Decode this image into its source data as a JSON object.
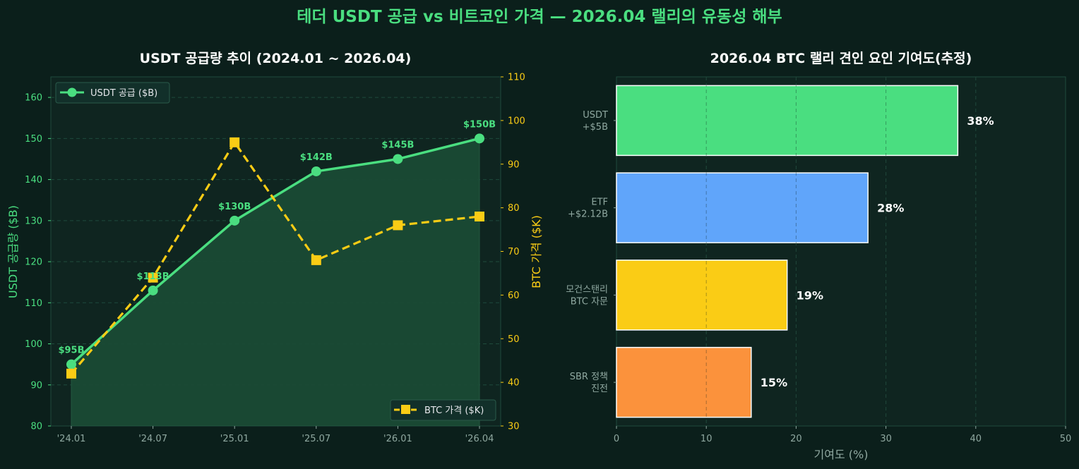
{
  "suptitle": "테더 USDT 공급 vs 비트코인 가격 — 2026.04 랠리의 유동성 해부",
  "colors": {
    "background": "#0b1f1b",
    "panel": "#0f2520",
    "usdt": "#4ade80",
    "btc": "#facc15",
    "etf": "#60a5fa",
    "sbr": "#fb923c",
    "tick": "#8fa8a0"
  },
  "chart_data": [
    {
      "type": "line",
      "title": "USDT 공급량 추이 (2024.01 ~ 2026.04)",
      "x": [
        "'24.01",
        "'24.07",
        "'25.01",
        "'25.07",
        "'26.01",
        "'26.04"
      ],
      "xlabel": "",
      "ylabel": "USDT 공급량 ($B)",
      "ylim": [
        80,
        165
      ],
      "yticks": [
        80,
        90,
        100,
        110,
        120,
        130,
        140,
        150,
        160
      ],
      "y2label": "BTC 가격 ($K)",
      "y2lim": [
        30,
        110
      ],
      "y2ticks": [
        30,
        40,
        50,
        60,
        70,
        80,
        90,
        100,
        110
      ],
      "grid": true,
      "series": [
        {
          "name": "USDT 공급 ($B)",
          "axis": "left",
          "values": [
            95,
            113,
            130,
            142,
            145,
            150
          ],
          "labels": [
            "$95B",
            "$113B",
            "$130B",
            "$142B",
            "$145B",
            "$150B"
          ],
          "marker": "circle",
          "fill": true
        },
        {
          "name": "BTC 가격 ($K)",
          "axis": "right",
          "values": [
            42,
            64,
            95,
            68,
            76,
            78
          ],
          "marker": "square",
          "dashed": true
        }
      ],
      "legend": [
        "top-left",
        "bottom-right"
      ]
    },
    {
      "type": "bar",
      "orientation": "horizontal",
      "title": "2026.04 BTC 랠리 견인 요인 기여도(추정)",
      "categories": [
        [
          "USDT",
          "+$5B"
        ],
        [
          "ETF",
          "+$2.12B"
        ],
        [
          "모건스탠리",
          "BTC 자문"
        ],
        [
          "SBR 정책",
          "진전"
        ]
      ],
      "values": [
        38,
        28,
        19,
        15
      ],
      "labels": [
        "38%",
        "28%",
        "19%",
        "15%"
      ],
      "xlabel": "기여도 (%)",
      "xlim": [
        0,
        50
      ],
      "xticks": [
        0,
        10,
        20,
        30,
        40,
        50
      ],
      "grid": true
    }
  ]
}
